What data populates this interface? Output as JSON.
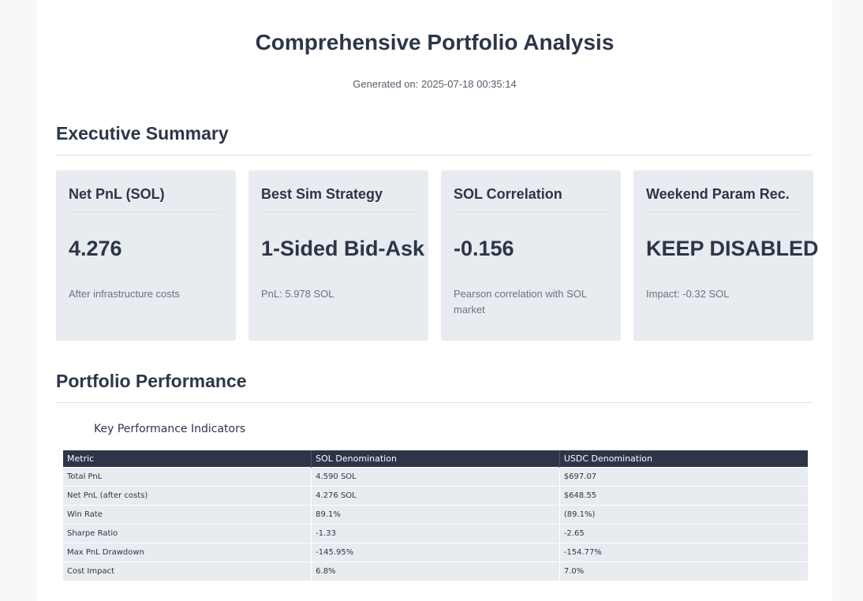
{
  "report": {
    "title": "Comprehensive Portfolio Analysis",
    "generated": "Generated on: 2025-07-18 00:35:14"
  },
  "executive_summary": {
    "heading": "Executive Summary",
    "cards": [
      {
        "title": "Net PnL (SOL)",
        "value": "4.276",
        "note": "After infrastructure costs"
      },
      {
        "title": "Best Sim Strategy",
        "value": "1-Sided Bid-Ask",
        "note": "PnL: 5.978 SOL"
      },
      {
        "title": "SOL Correlation",
        "value": "-0.156",
        "note": "Pearson correlation with SOL market"
      },
      {
        "title": "Weekend Param Rec.",
        "value": "KEEP DISABLED",
        "note": "Impact: -0.32 SOL"
      }
    ]
  },
  "portfolio_performance": {
    "heading": "Portfolio Performance",
    "kpi_caption": "Key Performance Indicators",
    "table": {
      "headers": [
        "Metric",
        "SOL Denomination",
        "USDC Denomination"
      ],
      "rows": [
        [
          "Total PnL",
          "4.590 SOL",
          "$697.07"
        ],
        [
          "Net PnL (after costs)",
          "4.276 SOL",
          "$648.55"
        ],
        [
          "Win Rate",
          "89.1%",
          "(89.1%)"
        ],
        [
          "Sharpe Ratio",
          "-1.33",
          "-2.65"
        ],
        [
          "Max PnL Drawdown",
          "-145.95%",
          "-154.77%"
        ],
        [
          "Cost Impact",
          "6.8%",
          "7.0%"
        ]
      ]
    }
  }
}
